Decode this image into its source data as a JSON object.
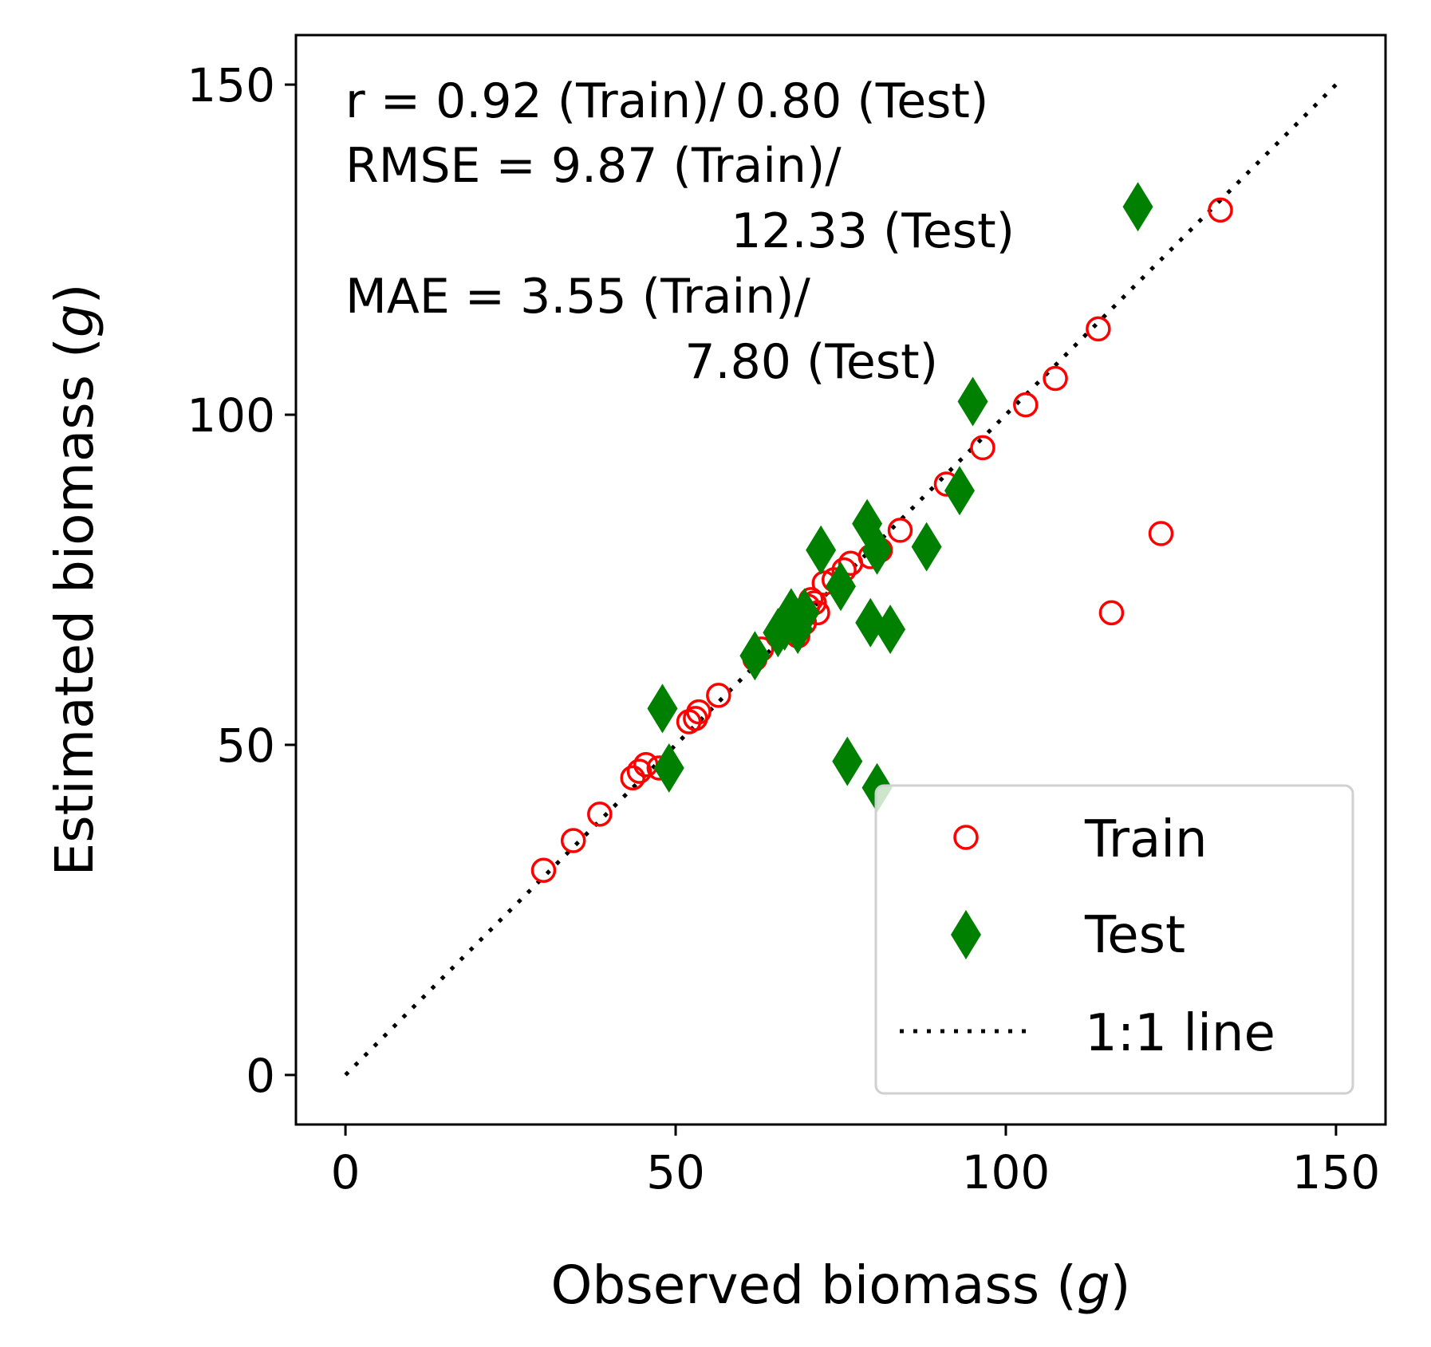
{
  "chart_data": {
    "type": "scatter",
    "xlabel": "Observed biomass (g)",
    "ylabel": "Estimated biomass (g)",
    "xlabel_parts": {
      "prefix": "Observed biomass (",
      "italic": "g",
      "suffix": ")"
    },
    "ylabel_parts": {
      "prefix": "Estimated biomass (",
      "italic": "g",
      "suffix": ")"
    },
    "xlim": [
      -7.5,
      157.5
    ],
    "ylim": [
      -7.5,
      157.5
    ],
    "xticks": [
      0,
      50,
      100,
      150
    ],
    "yticks": [
      0,
      50,
      100,
      150
    ],
    "xtick_labels": [
      "0",
      "50",
      "100",
      "150"
    ],
    "ytick_labels": [
      "0",
      "50",
      "100",
      "150"
    ],
    "grid": false,
    "legend_position": "lower-right",
    "annotation_lines": [
      "r = 0.92 (Train)/ 0.80 (Test)",
      "RMSE = 9.87 (Train)/",
      "12.33 (Test)",
      "MAE = 3.55 (Train)/",
      "7.80 (Test)"
    ],
    "series": [
      {
        "name": "Train",
        "marker": "open-circle",
        "color": "#ff0000",
        "points": [
          [
            30,
            31
          ],
          [
            34.5,
            35.5
          ],
          [
            38.5,
            39.5
          ],
          [
            43.5,
            45
          ],
          [
            44.5,
            46
          ],
          [
            45.5,
            47
          ],
          [
            47.5,
            46.5
          ],
          [
            52,
            53.5
          ],
          [
            53,
            54
          ],
          [
            53.5,
            55
          ],
          [
            56.5,
            57.5
          ],
          [
            62,
            63
          ],
          [
            63,
            64.5
          ],
          [
            65.5,
            66.5
          ],
          [
            66.5,
            67.5
          ],
          [
            68.5,
            66.5
          ],
          [
            69.5,
            68.5
          ],
          [
            70,
            71
          ],
          [
            70.5,
            72
          ],
          [
            71,
            71.5
          ],
          [
            71.5,
            70
          ],
          [
            72.5,
            74.5
          ],
          [
            74,
            75
          ],
          [
            75.5,
            76.5
          ],
          [
            76.5,
            77.5
          ],
          [
            79.5,
            78.5
          ],
          [
            81,
            79.5
          ],
          [
            84,
            82.5
          ],
          [
            91,
            89.5
          ],
          [
            96.5,
            95
          ],
          [
            103,
            101.5
          ],
          [
            107.5,
            105.5
          ],
          [
            114,
            113
          ],
          [
            116,
            70
          ],
          [
            123.5,
            82
          ],
          [
            132.5,
            131
          ]
        ]
      },
      {
        "name": "Test",
        "marker": "thin-diamond",
        "color": "#008000",
        "points": [
          [
            48,
            55.5
          ],
          [
            49,
            46.5
          ],
          [
            62,
            63.5
          ],
          [
            65.5,
            67
          ],
          [
            66.5,
            68
          ],
          [
            67.5,
            70
          ],
          [
            68.5,
            67.5
          ],
          [
            69.5,
            70
          ],
          [
            72,
            79.5
          ],
          [
            75,
            74
          ],
          [
            76,
            47.5
          ],
          [
            79,
            83.5
          ],
          [
            79.5,
            68.5
          ],
          [
            80.5,
            79.5
          ],
          [
            80.5,
            43.5
          ],
          [
            82.5,
            67.5
          ],
          [
            88,
            80
          ],
          [
            93,
            88.5
          ],
          [
            95,
            102
          ],
          [
            120,
            131.5
          ]
        ]
      },
      {
        "name": "1:1 line",
        "marker": "dotted-line",
        "color": "#000000",
        "points": [
          [
            0,
            0
          ],
          [
            150,
            150
          ]
        ]
      }
    ]
  }
}
